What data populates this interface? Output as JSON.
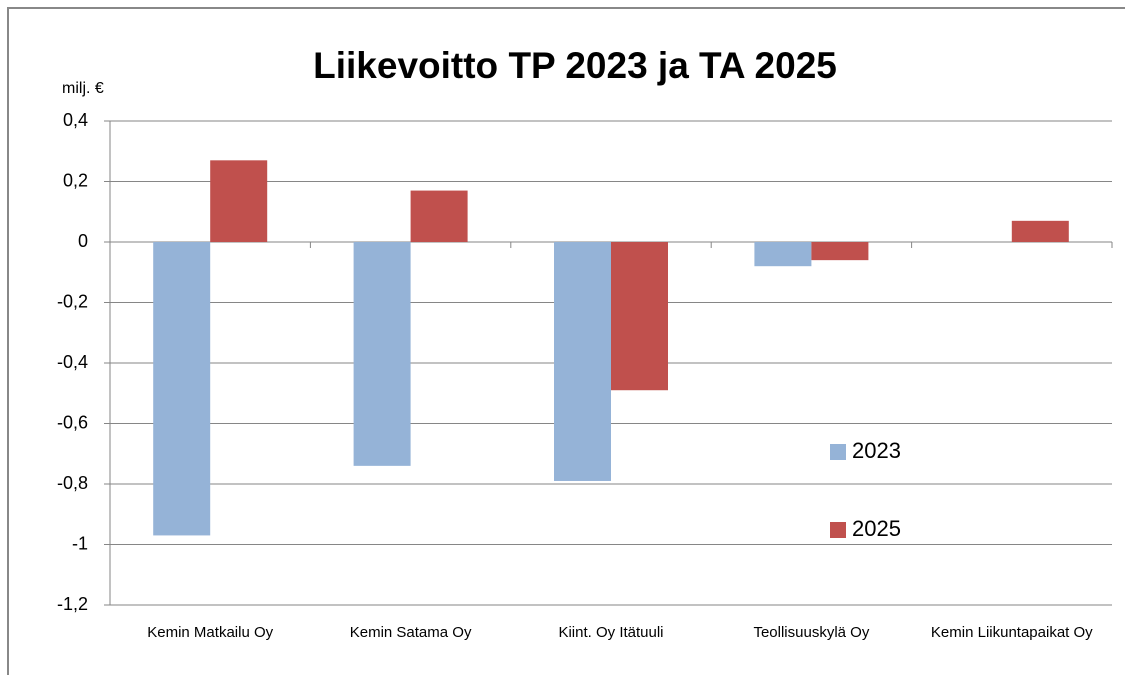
{
  "chart_data": {
    "type": "bar",
    "title": "Liikevoitto TP 2023 ja TA 2025",
    "y_label": "milj. €",
    "categories": [
      "Kemin Matkailu Oy",
      "Kemin Satama Oy",
      "Kiint. Oy Itätuuli",
      "Teollisuuskylä Oy",
      "Kemin Liikuntapaikat Oy"
    ],
    "series": [
      {
        "name": "2023",
        "color": "#95b3d7",
        "values": [
          -0.97,
          -0.74,
          -0.79,
          -0.08,
          0
        ]
      },
      {
        "name": "2025",
        "color": "#c0504d",
        "values": [
          0.27,
          0.17,
          -0.49,
          -0.06,
          0.07
        ]
      }
    ],
    "ylim": [
      -1.2,
      0.4
    ],
    "yticks": [
      {
        "value": 0.4,
        "label": "0,4"
      },
      {
        "value": 0.2,
        "label": "0,2"
      },
      0,
      {
        "value": -0.2,
        "label": "-0,2"
      },
      {
        "value": -0.4,
        "label": "-0,4"
      },
      {
        "value": -0.6,
        "label": "-0,6"
      },
      {
        "value": -0.8,
        "label": "-0,8"
      },
      -1,
      {
        "value": -1.2,
        "label": "-1,2"
      }
    ],
    "grid": true,
    "legend": "right"
  }
}
